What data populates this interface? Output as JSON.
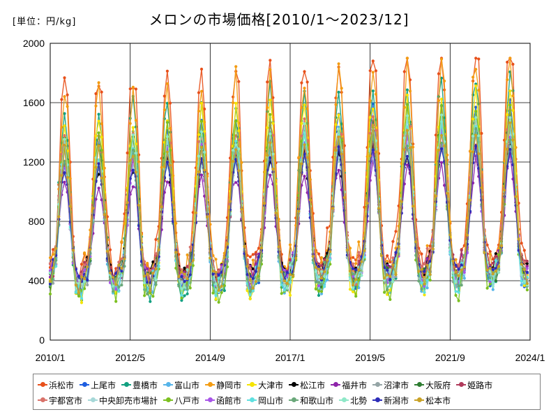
{
  "chart_data": {
    "type": "line",
    "title": "メロンの市場価格[2010/1～2023/12]",
    "unit_label": "[単位：円/kg]",
    "xlabel": "",
    "ylabel": "",
    "ylim": [
      0,
      2000
    ],
    "yticks": [
      0,
      400,
      800,
      1200,
      1600,
      2000
    ],
    "x_range": [
      "2010/1",
      "2024/1"
    ],
    "xticks": [
      "2010/1",
      "2012/5",
      "2014/9",
      "2017/1",
      "2019/5",
      "2021/9",
      "2024/1"
    ],
    "grid": true,
    "legend_position": "bottom",
    "series": [
      {
        "name": "浜松市",
        "color": "#e8501a",
        "peak": 1750,
        "trough": 450,
        "jitter": 0.8
      },
      {
        "name": "上尾市",
        "color": "#1f5ee0",
        "peak": 1400,
        "trough": 360,
        "jitter": 0.5
      },
      {
        "name": "豊橋市",
        "color": "#12a080",
        "peak": 1550,
        "trough": 330,
        "jitter": 0.7
      },
      {
        "name": "富山市",
        "color": "#56b4e9",
        "peak": 1300,
        "trough": 330,
        "jitter": 0.5
      },
      {
        "name": "静岡市",
        "color": "#f39c12",
        "peak": 1650,
        "trough": 420,
        "jitter": 0.8
      },
      {
        "name": "大津市",
        "color": "#f5e400",
        "peak": 1450,
        "trough": 330,
        "jitter": 0.6
      },
      {
        "name": "松江市",
        "color": "#000000",
        "peak": 1150,
        "trough": 430,
        "jitter": 0.4
      },
      {
        "name": "福井市",
        "color": "#8e24aa",
        "peak": 1050,
        "trough": 420,
        "jitter": 0.4
      },
      {
        "name": "沼津市",
        "color": "#95a5a6",
        "peak": 1250,
        "trough": 360,
        "jitter": 0.5
      },
      {
        "name": "大阪府",
        "color": "#2e7d32",
        "peak": 1300,
        "trough": 380,
        "jitter": 0.5
      },
      {
        "name": "姫路市",
        "color": "#b03a5b",
        "peak": 1200,
        "trough": 420,
        "jitter": 0.5
      },
      {
        "name": "宇都宮市",
        "color": "#d9726a",
        "peak": 1350,
        "trough": 400,
        "jitter": 0.6
      },
      {
        "name": "中央卸売市場計",
        "color": "#a6d8d8",
        "peak": 1150,
        "trough": 380,
        "jitter": 0.3
      },
      {
        "name": "八戸市",
        "color": "#7cc020",
        "peak": 1350,
        "trough": 300,
        "jitter": 0.6
      },
      {
        "name": "函館市",
        "color": "#a855e8",
        "peak": 1200,
        "trough": 380,
        "jitter": 0.5
      },
      {
        "name": "岡山市",
        "color": "#5fe0e0",
        "peak": 1250,
        "trough": 340,
        "jitter": 0.5
      },
      {
        "name": "和歌山市",
        "color": "#6aa87a",
        "peak": 1200,
        "trough": 360,
        "jitter": 0.5
      },
      {
        "name": "北勢",
        "color": "#8fe8c8",
        "peak": 1300,
        "trough": 370,
        "jitter": 0.5
      },
      {
        "name": "新潟市",
        "color": "#2c2cb8",
        "peak": 1150,
        "trough": 400,
        "jitter": 0.4
      },
      {
        "name": "松本市",
        "color": "#c9a227",
        "peak": 1250,
        "trough": 380,
        "jitter": 0.5
      }
    ]
  }
}
